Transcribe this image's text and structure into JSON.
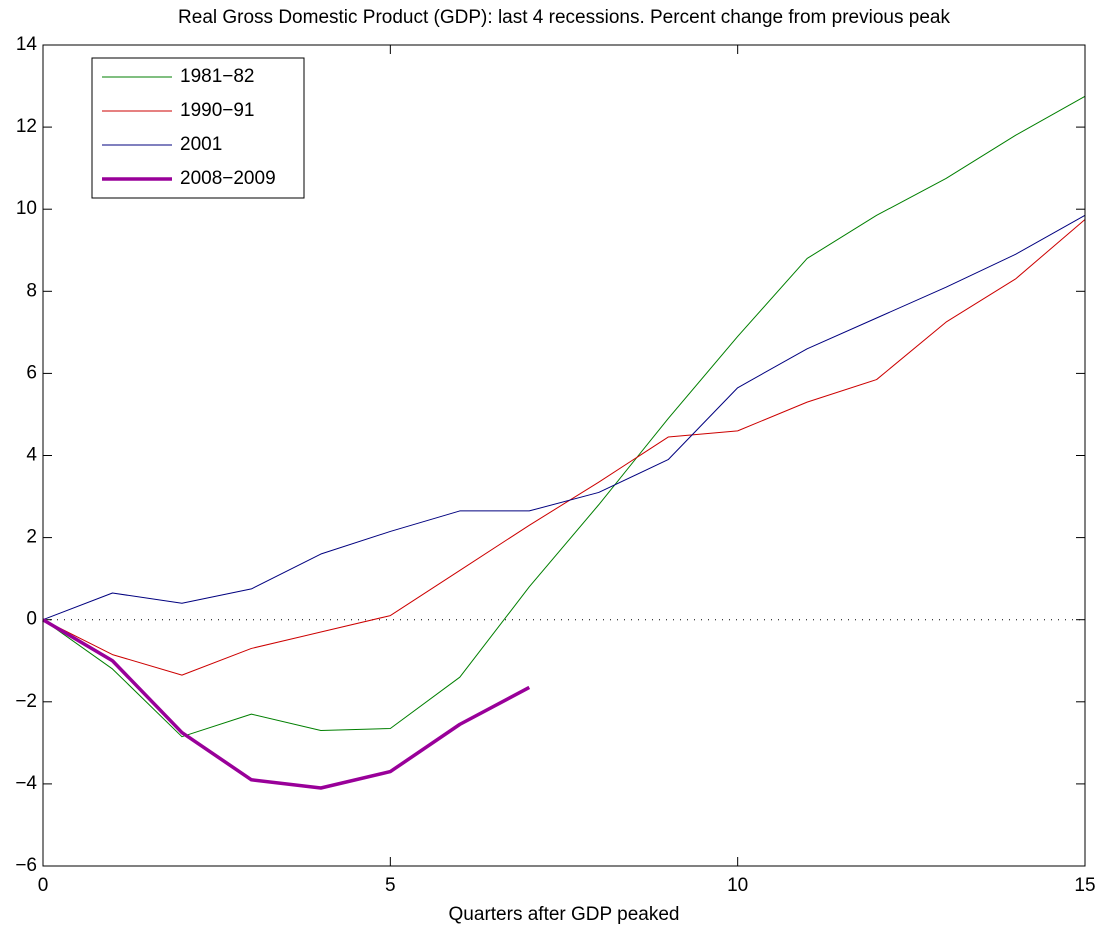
{
  "chart_data": {
    "type": "line",
    "title": "Real Gross Domestic Product (GDP):  last 4 recessions.  Percent change from previous peak",
    "x_label": "Quarters after GDP peaked",
    "x": [
      0,
      1,
      2,
      3,
      4,
      5,
      6,
      7,
      8,
      9,
      10,
      11,
      12,
      13,
      14,
      15
    ],
    "series": [
      {
        "name": "1981−82",
        "color": "#007f00",
        "width": 1,
        "values": [
          0,
          -1.2,
          -2.85,
          -2.3,
          -2.7,
          -2.65,
          -1.4,
          0.8,
          2.8,
          4.9,
          6.9,
          8.8,
          9.85,
          10.75,
          11.8,
          12.75
        ]
      },
      {
        "name": "1990−91",
        "color": "#cc0000",
        "width": 1,
        "values": [
          0,
          -0.85,
          -1.35,
          -0.7,
          -0.3,
          0.1,
          1.2,
          2.3,
          3.35,
          4.45,
          4.6,
          5.3,
          5.85,
          7.25,
          8.3,
          9.75
        ]
      },
      {
        "name": "2001",
        "color": "#00007f",
        "width": 1,
        "values": [
          0,
          0.65,
          0.4,
          0.75,
          1.6,
          2.15,
          2.65,
          2.65,
          3.1,
          3.9,
          5.65,
          6.6,
          7.35,
          8.1,
          8.9,
          9.85
        ]
      },
      {
        "name": "2008−2009",
        "color": "#990099",
        "width": 3.5,
        "values": [
          0,
          -1,
          -2.75,
          -3.9,
          -4.1,
          -3.7,
          -2.55,
          -1.65,
          null,
          null,
          null,
          null,
          null,
          null,
          null,
          null
        ]
      }
    ],
    "xlim": [
      0,
      15
    ],
    "xticks": [
      0,
      5,
      10,
      15
    ],
    "ylim": [
      -6,
      14
    ],
    "yticks": [
      {
        "value": -6,
        "label": "−6"
      },
      {
        "value": -4,
        "label": "−4"
      },
      {
        "value": -2,
        "label": "−2"
      },
      0,
      2,
      4,
      6,
      8,
      10,
      12,
      14
    ],
    "zero_line": true,
    "legend": "upper-left"
  }
}
